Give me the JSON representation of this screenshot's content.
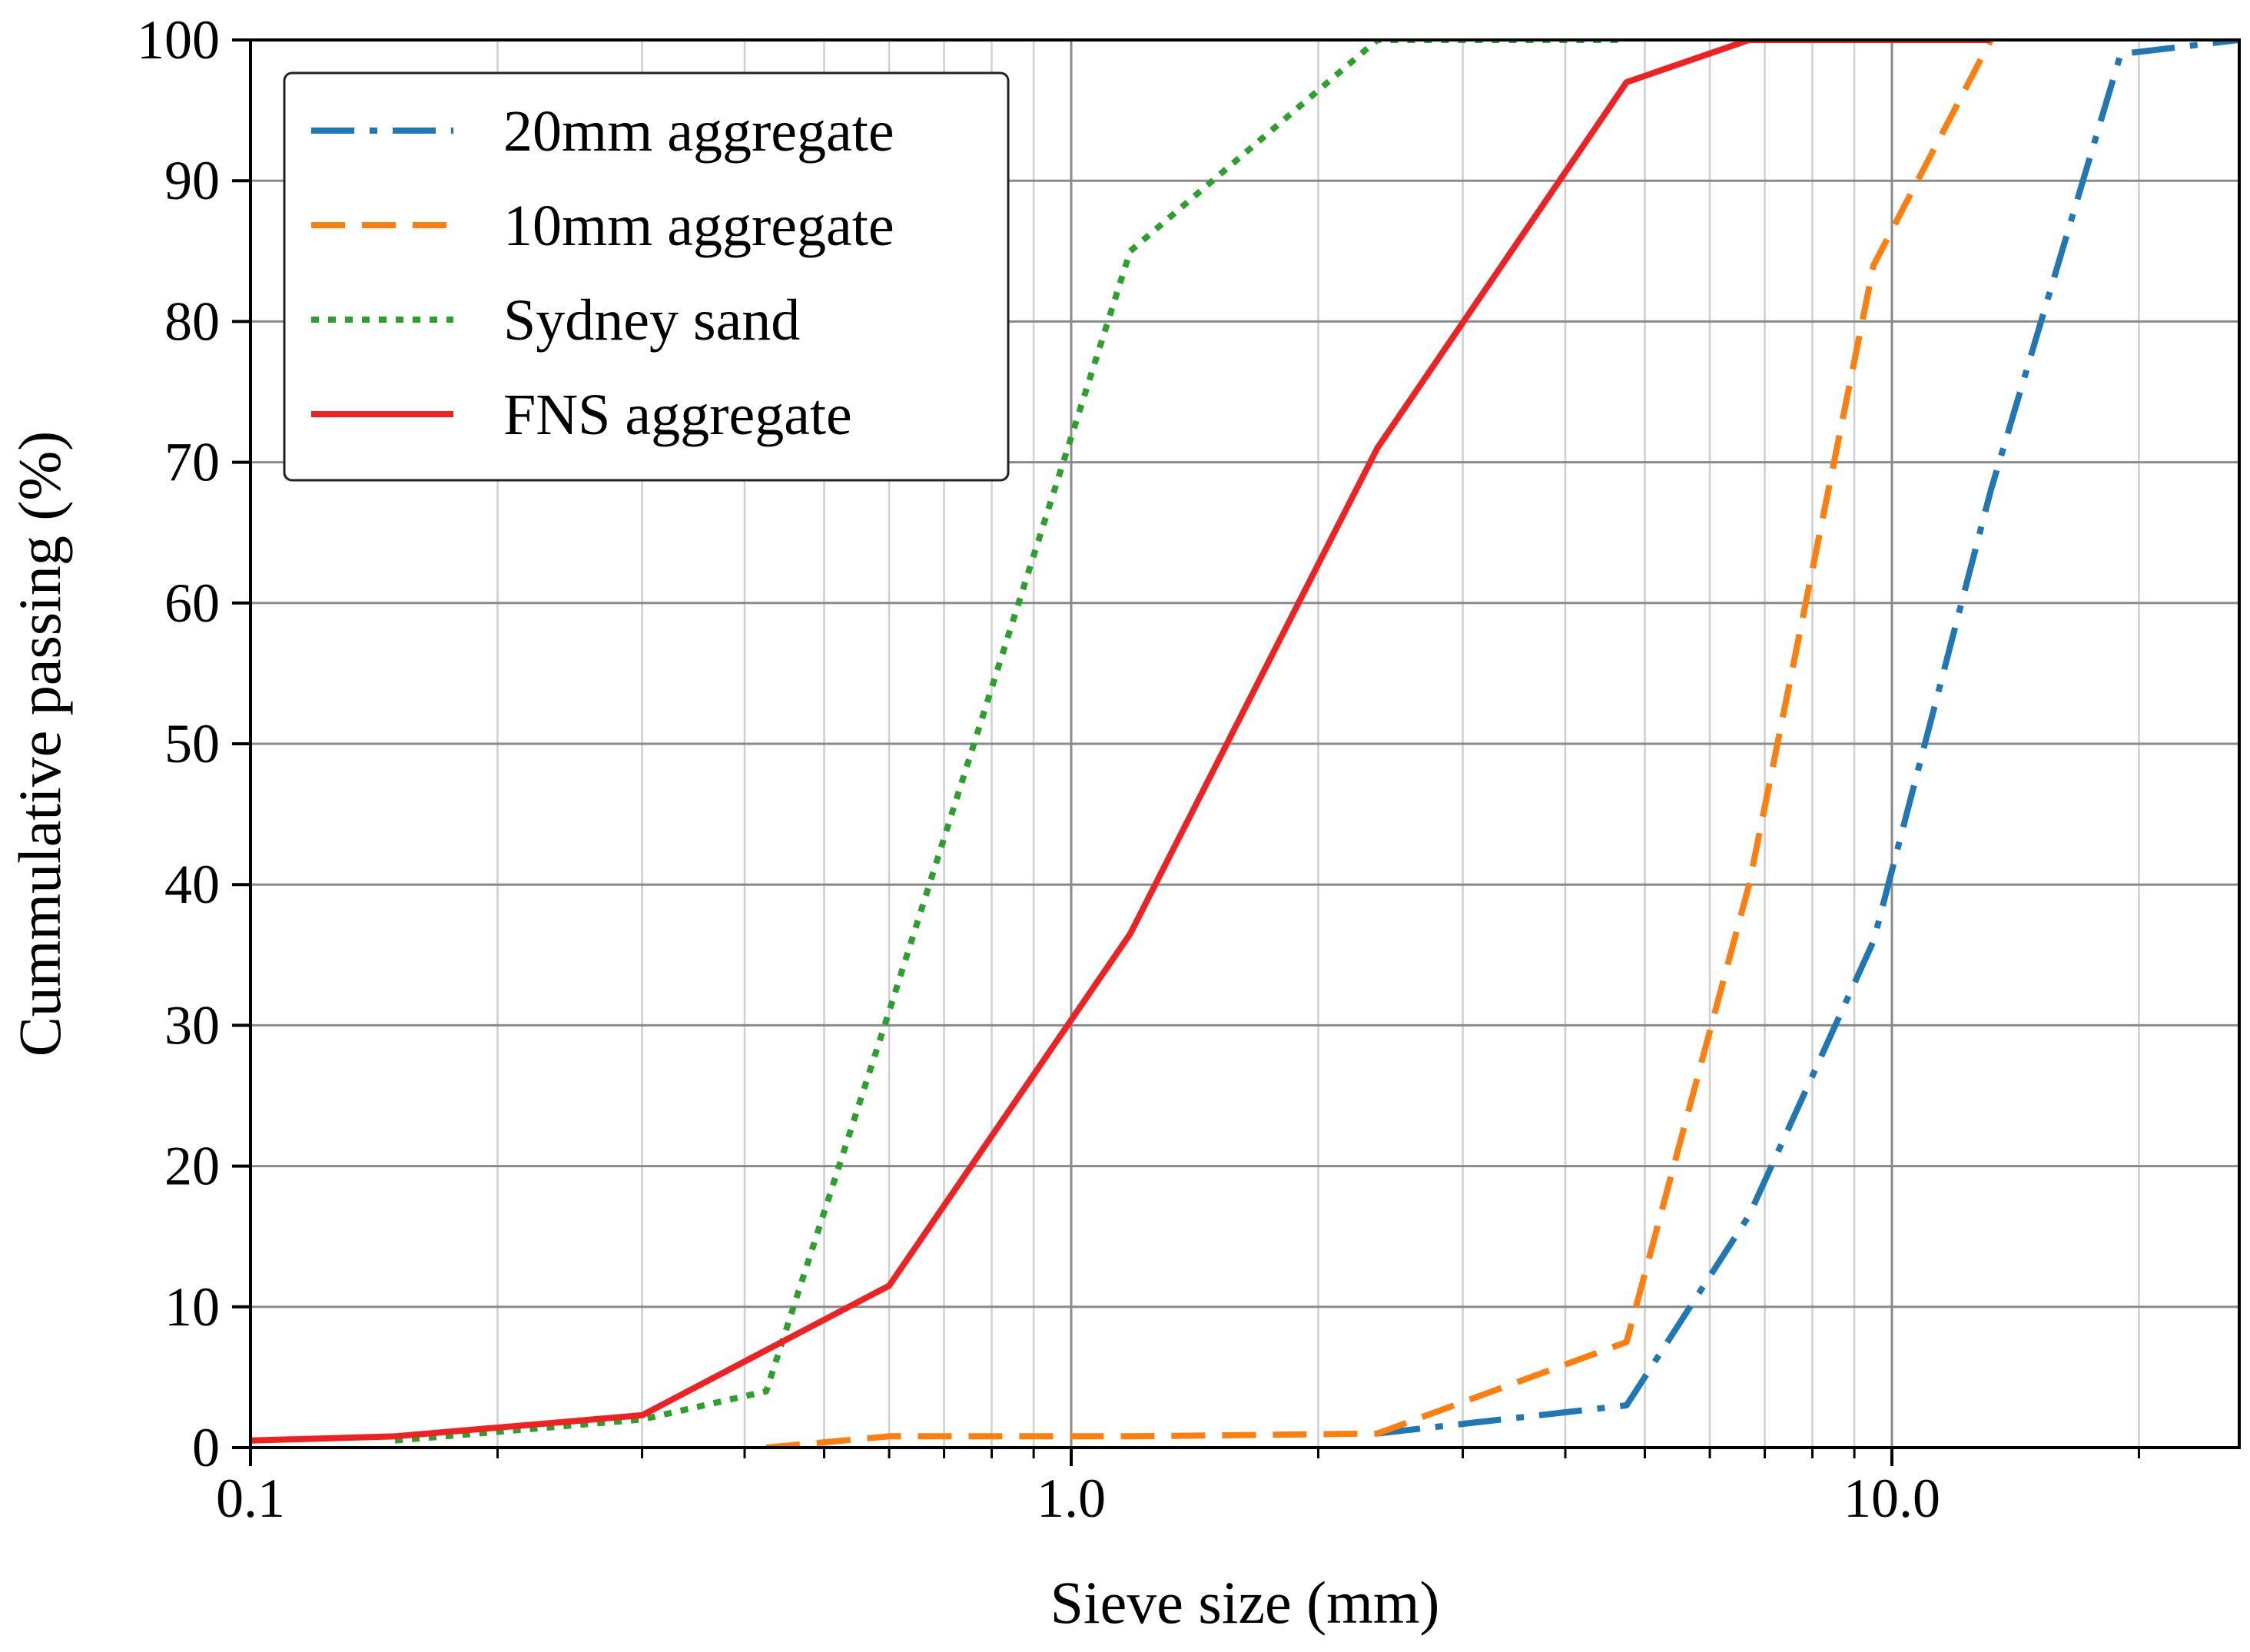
{
  "chart_data": {
    "type": "line",
    "title": "",
    "xlabel": "Sieve size (mm)",
    "ylabel": "Cummulative passing (%)",
    "xscale": "log",
    "xlim": [
      0.1,
      26.5
    ],
    "ylim": [
      0,
      100
    ],
    "grid": true,
    "legend_position": "top-left",
    "x_ticks": [
      {
        "value": 0.1,
        "label": "0.1"
      },
      {
        "value": 1.0,
        "label": "1.0"
      },
      {
        "value": 10.0,
        "label": "10.0"
      }
    ],
    "y_ticks": [
      {
        "value": 0,
        "label": "0"
      },
      {
        "value": 10,
        "label": "10"
      },
      {
        "value": 20,
        "label": "20"
      },
      {
        "value": 30,
        "label": "30"
      },
      {
        "value": 40,
        "label": "40"
      },
      {
        "value": 50,
        "label": "50"
      },
      {
        "value": 60,
        "label": "60"
      },
      {
        "value": 70,
        "label": "70"
      },
      {
        "value": 80,
        "label": "80"
      },
      {
        "value": 90,
        "label": "90"
      },
      {
        "value": 100,
        "label": "100"
      }
    ],
    "series": [
      {
        "name": "20mm aggregate",
        "color": "#1f77b4",
        "style": "dashdot",
        "x": [
          2.36,
          4.75,
          6.7,
          9.5,
          13.2,
          19.0,
          26.5
        ],
        "y": [
          1.0,
          3.0,
          16.5,
          36.0,
          68.0,
          99.0,
          100.0
        ]
      },
      {
        "name": "10mm aggregate",
        "color": "#ff7f0e",
        "style": "dashed",
        "x": [
          0.425,
          0.6,
          1.18,
          2.36,
          4.75,
          6.7,
          9.5,
          13.2
        ],
        "y": [
          0.0,
          0.8,
          0.8,
          1.0,
          7.5,
          40.0,
          84.0,
          100.0
        ]
      },
      {
        "name": "Sydney sand",
        "color": "#2ca02c",
        "style": "dotted",
        "x": [
          0.15,
          0.3,
          0.425,
          0.6,
          1.18,
          2.36,
          4.75
        ],
        "y": [
          0.5,
          2.0,
          4.0,
          31.0,
          85.0,
          100.0,
          100.0
        ]
      },
      {
        "name": "FNS aggregate",
        "color": "#ee2222",
        "style": "solid",
        "x": [
          0.1,
          0.15,
          0.3,
          0.6,
          1.18,
          2.36,
          4.75,
          6.7,
          13.2
        ],
        "y": [
          0.5,
          0.8,
          2.3,
          11.5,
          36.5,
          71.0,
          97.0,
          100.0,
          100.0
        ]
      }
    ]
  }
}
